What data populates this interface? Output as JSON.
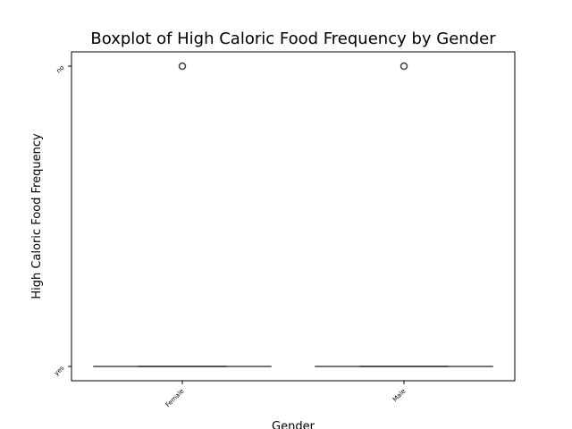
{
  "chart_data": {
    "type": "boxplot",
    "title": "Boxplot of High Caloric Food Frequency by Gender",
    "xlabel": "Gender",
    "ylabel": "High Caloric Food Frequency",
    "categories": [
      "Female",
      "Male"
    ],
    "y_categories": [
      "yes",
      "no"
    ],
    "grid": false,
    "boxes": [
      {
        "category": "Female",
        "min": "yes",
        "q1": "yes",
        "median": "yes",
        "q3": "yes",
        "max": "yes",
        "outliers": [
          "no"
        ]
      },
      {
        "category": "Male",
        "min": "yes",
        "q1": "yes",
        "median": "yes",
        "q3": "yes",
        "max": "yes",
        "outliers": [
          "no"
        ]
      }
    ],
    "colors": {
      "box": "#3d3d3d",
      "outlier": "#3d3d3d",
      "axis": "#000000"
    }
  }
}
